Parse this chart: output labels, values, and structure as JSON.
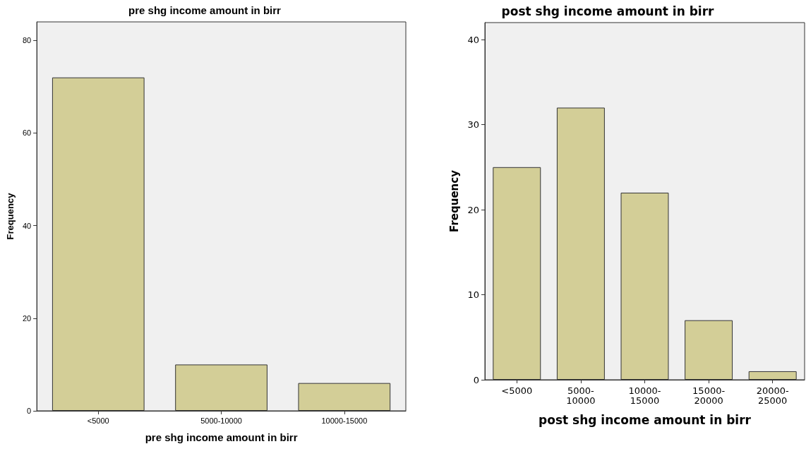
{
  "chart_data": [
    {
      "type": "bar",
      "title": "pre shg income amount in birr",
      "xlabel": "pre shg income amount in birr",
      "ylabel": "Frequency",
      "categories": [
        "<5000",
        "5000-10000",
        "10000-15000"
      ],
      "series": [
        {
          "color": "#d3ce97",
          "values": [
            72,
            10,
            6
          ]
        }
      ],
      "ylim": [
        0,
        84
      ],
      "yticks": [
        0,
        20,
        40,
        60,
        80
      ],
      "grid": false
    },
    {
      "type": "bar",
      "title": "post shg income amount in birr",
      "xlabel": "post shg income amount in birr",
      "ylabel": "Frequency",
      "categories": [
        "<5000",
        "5000-10000",
        "10000-15000",
        "15000-20000",
        "20000-25000"
      ],
      "series": [
        {
          "color": "#d3ce97",
          "values": [
            25,
            32,
            22,
            7,
            1
          ]
        }
      ],
      "ylim": [
        0,
        42
      ],
      "yticks": [
        0,
        10,
        20,
        30,
        40
      ],
      "grid": false
    }
  ]
}
